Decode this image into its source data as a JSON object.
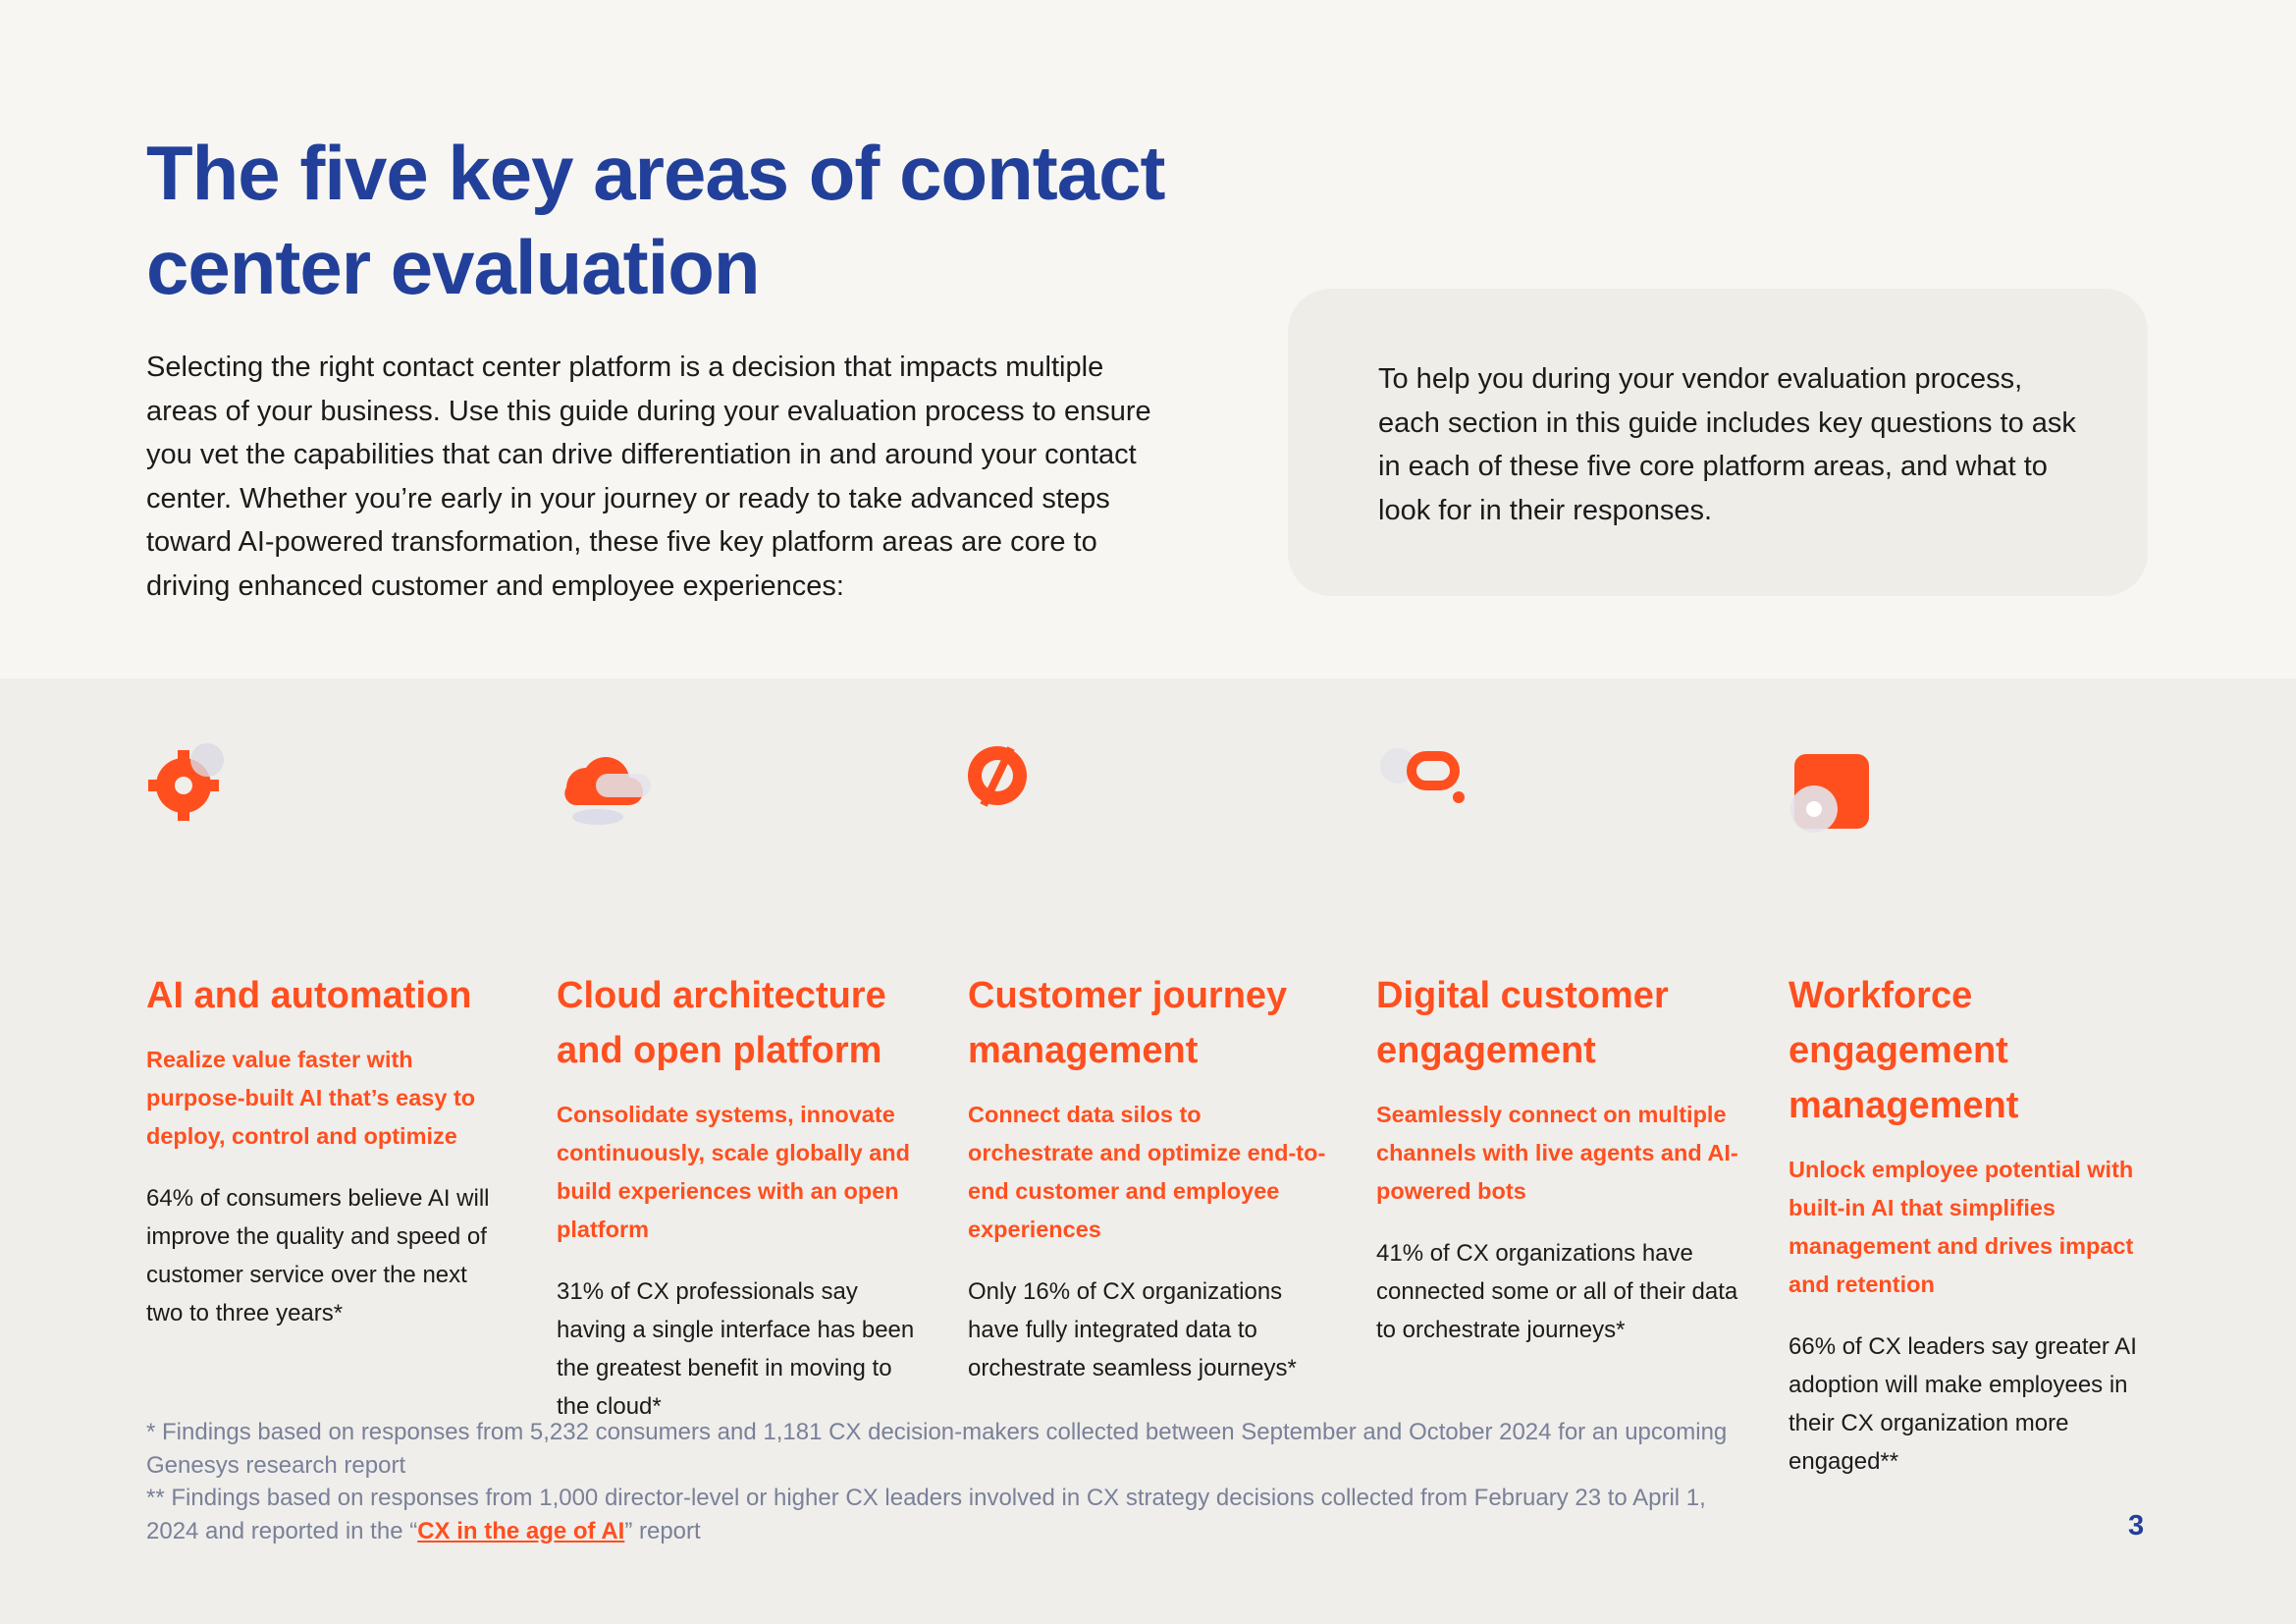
{
  "header": {
    "title": "The five key areas of contact center evaluation",
    "intro": "Selecting the right contact center platform is a decision that impacts multiple areas of your business. Use this guide during your evaluation process to ensure you vet the capabilities that can drive differentiation in and around your contact center. Whether you’re early in your journey or ready to take advanced steps toward AI-powered transformation, these five key platform areas are core to driving enhanced customer and employee experiences:",
    "callout": "To help you during your vendor evaluation process, each section in this guide includes key questions to ask in each of these five core platform areas, and what to look for in their responses."
  },
  "areas": [
    {
      "title": "AI and automation",
      "subtitle": "Realize value faster with purpose-built AI that’s easy to deploy, control and optimize",
      "body": "64% of consumers believe AI will improve the quality and speed of customer service over the next two to three years*"
    },
    {
      "title": "Cloud architecture and open platform",
      "subtitle": "Consolidate systems, innovate continuously, scale globally and build experiences with an open platform",
      "body": "31% of CX professionals say having a single interface has been the greatest benefit in moving to the cloud*"
    },
    {
      "title": "Customer journey management",
      "subtitle": "Connect data silos to orchestrate and optimize end-to-end customer and employee experiences",
      "body": "Only 16% of CX organizations have fully integrated data to orchestrate seamless journeys*"
    },
    {
      "title": "Digital customer engagement",
      "subtitle": "Seamlessly connect on multiple channels with live agents and AI-powered bots",
      "body": "41% of CX organizations have connected some or all of their data to orchestrate journeys*"
    },
    {
      "title": "Workforce engagement management",
      "subtitle": "Unlock employee potential with built-in AI that simplifies management and drives impact and retention",
      "body": "66% of CX leaders say greater AI adoption will make employees in their CX organization more engaged**"
    }
  ],
  "footnotes": {
    "first": "* Findings based on responses from 5,232 consumers and 1,181 CX decision-makers collected between September and October 2024 for an upcoming Genesys research report",
    "second_before": "** Findings based on responses from 1,000 director-level or higher CX leaders involved in CX strategy decisions collected from February 23 to April 1, 2024 and reported in the “",
    "second_link": "CX in the age of AI",
    "second_after": "” report"
  },
  "page_number": "3"
}
